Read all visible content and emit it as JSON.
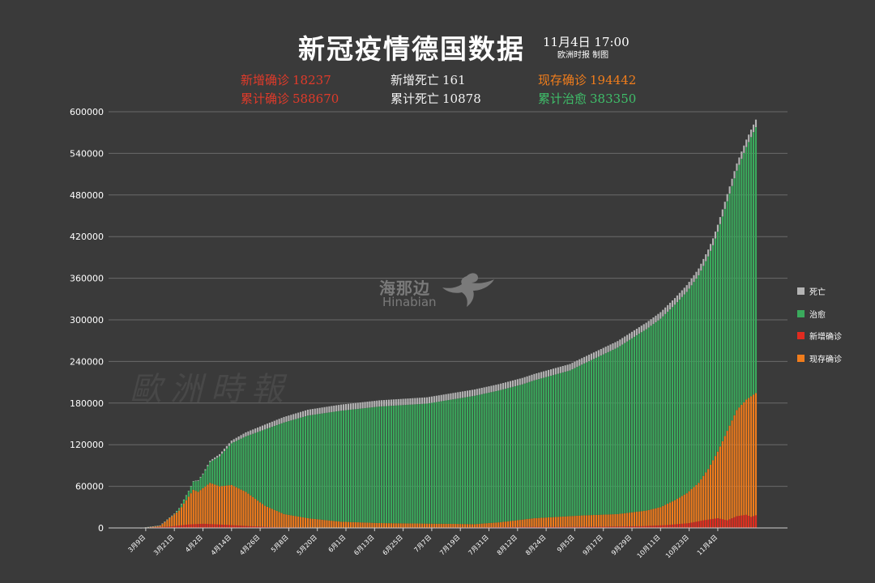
{
  "header": {
    "title": "新冠疫情德国数据",
    "date": "11月4日  17:00",
    "credit": "欧洲时报 制图"
  },
  "stats": {
    "new_cases_label": "新增确诊",
    "new_cases": "18237",
    "total_cases_label": "累计确诊",
    "total_cases": "588670",
    "new_deaths_label": "新增死亡",
    "new_deaths": "161",
    "total_deaths_label": "累计死亡",
    "total_deaths": "10878",
    "active_label": "现存确诊",
    "active": "194442",
    "recovered_label": "累计治愈",
    "recovered": "383350"
  },
  "watermark": {
    "brand_cn": "海那边",
    "brand_en": "Hinabian",
    "paper": "歐洲時報"
  },
  "colors": {
    "deaths": "#b4b4b4",
    "recovered": "#3aaa5c",
    "new_cases": "#e02b20",
    "active": "#f07c1c",
    "background": "#3a3a3a",
    "grid": "#6a6a6a"
  },
  "chart_data": {
    "type": "bar",
    "stacked": true,
    "grid": true,
    "legend_placement": "right",
    "ylim": [
      0,
      600000
    ],
    "yticks": [
      "0",
      "60000",
      "120000",
      "180000",
      "240000",
      "300000",
      "360000",
      "420000",
      "480000",
      "540000",
      "600000"
    ],
    "xticks": [
      "3月9日",
      "3月21日",
      "4月2日",
      "4月14日",
      "4月26日",
      "5月8日",
      "5月20日",
      "6月1日",
      "6月13日",
      "6月25日",
      "7月7日",
      "7月19日",
      "7月31日",
      "8月12日",
      "8月24日",
      "9月5日",
      "9月17日",
      "9月29日",
      "10月11日",
      "10月23日",
      "11月4日"
    ],
    "x_start": "3月7日",
    "x_end": "11月4日",
    "legend": [
      "死亡",
      "治愈",
      "新增确诊",
      "现存确诊"
    ],
    "series_keyframes": {
      "active": [
        [
          0,
          0
        ],
        [
          8,
          3000
        ],
        [
          16,
          25000
        ],
        [
          22,
          55000
        ],
        [
          24,
          52000
        ],
        [
          29,
          65000
        ],
        [
          33,
          60000
        ],
        [
          38,
          62000
        ],
        [
          44,
          52000
        ],
        [
          52,
          32000
        ],
        [
          60,
          20000
        ],
        [
          70,
          14000
        ],
        [
          84,
          9000
        ],
        [
          100,
          7000
        ],
        [
          140,
          5500
        ],
        [
          150,
          8000
        ],
        [
          165,
          14000
        ],
        [
          185,
          18000
        ],
        [
          200,
          20000
        ],
        [
          212,
          25000
        ],
        [
          218,
          30000
        ],
        [
          224,
          40000
        ],
        [
          229,
          50000
        ],
        [
          234,
          65000
        ],
        [
          238,
          85000
        ],
        [
          242,
          110000
        ],
        [
          246,
          140000
        ],
        [
          250,
          170000
        ],
        [
          254,
          185000
        ],
        [
          242,
          110000
        ],
        [
          258,
          194442
        ]
      ],
      "recovered": [
        [
          0,
          0
        ],
        [
          14,
          1000
        ],
        [
          20,
          8000
        ],
        [
          26,
          20000
        ],
        [
          32,
          40000
        ],
        [
          38,
          60000
        ],
        [
          44,
          80000
        ],
        [
          52,
          110000
        ],
        [
          60,
          132000
        ],
        [
          70,
          148000
        ],
        [
          84,
          160000
        ],
        [
          100,
          168000
        ],
        [
          120,
          173000
        ],
        [
          140,
          185000
        ],
        [
          160,
          195000
        ],
        [
          180,
          210000
        ],
        [
          200,
          240000
        ],
        [
          210,
          258000
        ],
        [
          220,
          275000
        ],
        [
          230,
          292000
        ],
        [
          240,
          310000
        ],
        [
          250,
          345000
        ],
        [
          258,
          383350
        ]
      ],
      "deaths": [
        [
          0,
          0
        ],
        [
          14,
          100
        ],
        [
          20,
          400
        ],
        [
          26,
          1200
        ],
        [
          32,
          2800
        ],
        [
          38,
          4000
        ],
        [
          44,
          5800
        ],
        [
          52,
          7000
        ],
        [
          60,
          8000
        ],
        [
          80,
          8800
        ],
        [
          120,
          9100
        ],
        [
          180,
          9300
        ],
        [
          220,
          9500
        ],
        [
          240,
          10000
        ],
        [
          258,
          10878
        ]
      ],
      "new_cases": [
        [
          0,
          0
        ],
        [
          12,
          2000
        ],
        [
          20,
          5000
        ],
        [
          26,
          6000
        ],
        [
          30,
          5500
        ],
        [
          38,
          4000
        ],
        [
          46,
          2500
        ],
        [
          56,
          1000
        ],
        [
          80,
          500
        ],
        [
          140,
          800
        ],
        [
          160,
          1500
        ],
        [
          180,
          1500
        ],
        [
          200,
          2000
        ],
        [
          210,
          2500
        ],
        [
          220,
          4000
        ],
        [
          230,
          7000
        ],
        [
          236,
          11000
        ],
        [
          242,
          14000
        ],
        [
          246,
          11000
        ],
        [
          250,
          17000
        ],
        [
          254,
          19000
        ],
        [
          256,
          16000
        ],
        [
          258,
          18237
        ]
      ]
    }
  }
}
